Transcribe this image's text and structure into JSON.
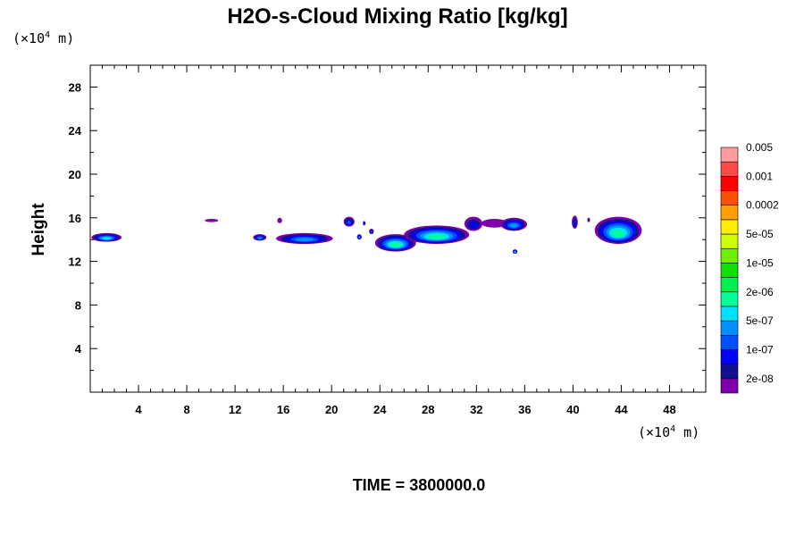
{
  "chart_data": {
    "type": "heatmap",
    "title": "H2O-s-Cloud Mixing Ratio [kg/kg]",
    "xlabel": "",
    "ylabel": "Height",
    "x_unit": {
      "prefix": "(×10",
      "exp": "4",
      "suffix": " m)"
    },
    "y_unit": {
      "prefix": "(×10",
      "exp": "4",
      "suffix": " m)"
    },
    "xlim": [
      0,
      51
    ],
    "ylim": [
      0,
      30
    ],
    "x_ticks": [
      4,
      8,
      12,
      16,
      20,
      24,
      28,
      32,
      36,
      40,
      44,
      48
    ],
    "y_ticks": [
      4,
      8,
      12,
      16,
      20,
      24,
      28
    ],
    "grid": false,
    "footer": "TIME = 3800000.0",
    "colorbar": {
      "colors": [
        "#7f00aa",
        "#101090",
        "#0000ff",
        "#0050ff",
        "#0090ff",
        "#00e0ff",
        "#00ff99",
        "#00f050",
        "#10e000",
        "#70ee00",
        "#ccff00",
        "#ffee00",
        "#ffa000",
        "#ff5000",
        "#ff0000",
        "#ff4a4a",
        "#ff9c9c"
      ],
      "labels": [
        "2e-08",
        "1e-07",
        "5e-07",
        "2e-06",
        "1e-05",
        "5e-05",
        "0.0002",
        "0.001",
        "0.005"
      ]
    },
    "features": [
      {
        "x0": 0.1,
        "x1": 2.6,
        "ytop": 14.6,
        "ybot": 13.8,
        "level": 5
      },
      {
        "x0": 9.5,
        "x1": 10.6,
        "ytop": 15.9,
        "ybot": 15.6,
        "level": 0
      },
      {
        "x0": 13.5,
        "x1": 14.6,
        "ytop": 14.5,
        "ybot": 13.9,
        "level": 4
      },
      {
        "x0": 15.4,
        "x1": 20.1,
        "ytop": 14.6,
        "ybot": 13.6,
        "level": 4
      },
      {
        "x0": 15.5,
        "x1": 15.9,
        "ytop": 16.0,
        "ybot": 15.5,
        "level": 0
      },
      {
        "x0": 21.0,
        "x1": 21.9,
        "ytop": 16.1,
        "ybot": 15.2,
        "level": 3
      },
      {
        "x0": 22.6,
        "x1": 22.8,
        "ytop": 15.7,
        "ybot": 15.3,
        "level": 3
      },
      {
        "x0": 22.1,
        "x1": 22.5,
        "ytop": 14.5,
        "ybot": 14.0,
        "level": 4
      },
      {
        "x0": 23.1,
        "x1": 23.5,
        "ytop": 15.0,
        "ybot": 14.5,
        "level": 3
      },
      {
        "x0": 23.6,
        "x1": 27.0,
        "ytop": 14.5,
        "ybot": 12.9,
        "level": 6
      },
      {
        "x0": 26.0,
        "x1": 31.4,
        "ytop": 15.3,
        "ybot": 13.6,
        "level": 6
      },
      {
        "x0": 31.0,
        "x1": 32.5,
        "ytop": 16.1,
        "ybot": 14.8,
        "level": 2
      },
      {
        "x0": 32.4,
        "x1": 34.6,
        "ytop": 15.9,
        "ybot": 15.1,
        "level": 0
      },
      {
        "x0": 34.0,
        "x1": 36.2,
        "ytop": 16.0,
        "ybot": 14.8,
        "level": 4
      },
      {
        "x0": 35.0,
        "x1": 35.4,
        "ytop": 13.1,
        "ybot": 12.7,
        "level": 5
      },
      {
        "x0": 39.9,
        "x1": 40.4,
        "ytop": 16.2,
        "ybot": 15.0,
        "level": 2
      },
      {
        "x0": 41.2,
        "x1": 41.4,
        "ytop": 16.0,
        "ybot": 15.6,
        "level": 1
      },
      {
        "x0": 41.8,
        "x1": 45.7,
        "ytop": 16.1,
        "ybot": 13.6,
        "level": 6
      }
    ]
  }
}
